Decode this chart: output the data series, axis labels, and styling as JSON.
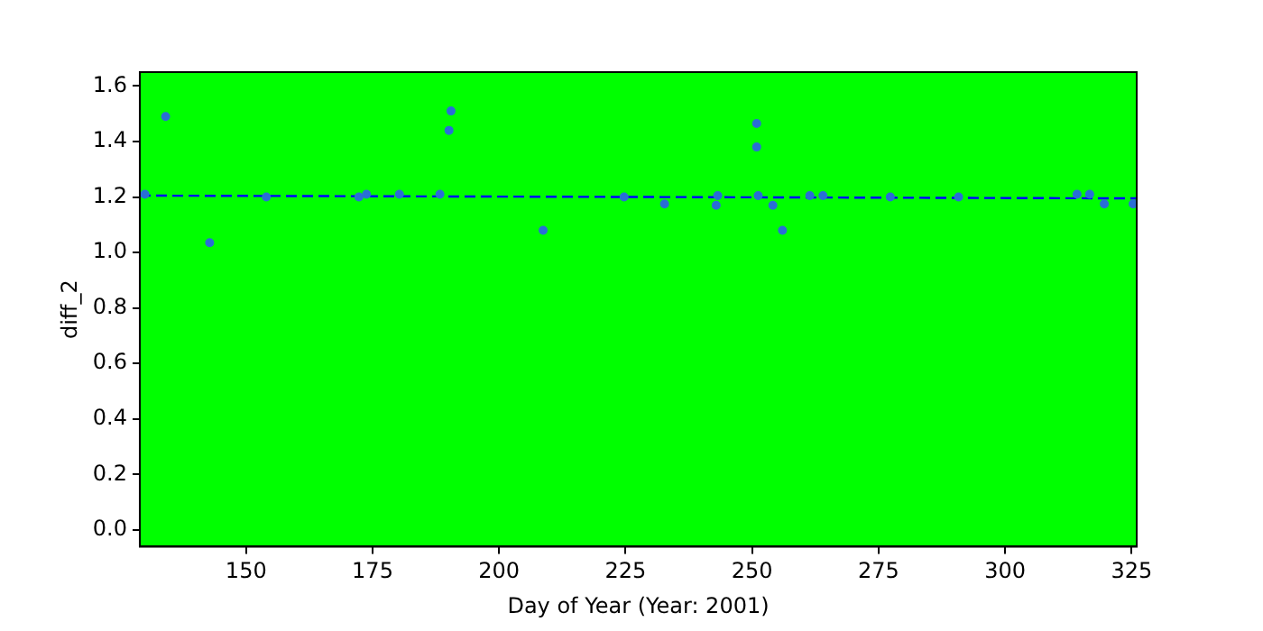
{
  "chart_data": {
    "type": "scatter",
    "xlabel": "Day of Year (Year: 2001)",
    "ylabel": "diff_2",
    "series": [
      {
        "type": "scatter",
        "color": "#2a6ed6",
        "marker": "circle",
        "x": [
          130,
          134.1,
          142.8,
          154,
          172.3,
          173.8,
          180.3,
          188.3,
          190.1,
          190.5,
          208.7,
          224.7,
          232.7,
          242.9,
          243.2,
          250.9,
          250.9,
          251.2,
          254.1,
          256,
          261.4,
          264,
          277.3,
          290.8,
          314.2,
          316.7,
          319.6,
          325.3
        ],
        "values": [
          1.21,
          1.49,
          1.035,
          1.2,
          1.2,
          1.21,
          1.21,
          1.21,
          1.44,
          1.51,
          1.08,
          1.2,
          1.175,
          1.17,
          1.205,
          1.465,
          1.38,
          1.205,
          1.17,
          1.08,
          1.205,
          1.205,
          1.2,
          1.2,
          1.21,
          1.21,
          1.175,
          1.175
        ]
      },
      {
        "type": "line",
        "color": "#0000ff",
        "line_style": "dashed",
        "marker": "none",
        "x": [
          129,
          326
        ],
        "values": [
          1.205,
          1.195
        ]
      }
    ],
    "xlim": [
      129,
      326
    ],
    "ylim": [
      -0.06,
      1.65
    ],
    "xticks": [
      150,
      175,
      200,
      225,
      250,
      275,
      300,
      325
    ],
    "yticks": [
      {
        "value": 0,
        "label": "0.0"
      },
      {
        "value": 0.2,
        "label": "0.2"
      },
      {
        "value": 0.4,
        "label": "0.4"
      },
      {
        "value": 0.6,
        "label": "0.6"
      },
      {
        "value": 0.8,
        "label": "0.8"
      },
      {
        "value": 1,
        "label": "1.0"
      },
      {
        "value": 1.2,
        "label": "1.2"
      },
      {
        "value": 1.4,
        "label": "1.4"
      },
      {
        "value": 1.6,
        "label": "1.6"
      }
    ],
    "grid": false,
    "legend": false
  }
}
